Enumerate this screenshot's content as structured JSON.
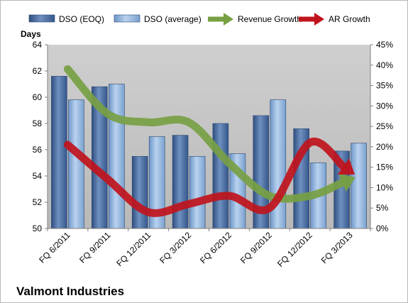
{
  "chart_data": {
    "type": "bar",
    "title": "Valmont Industries",
    "ylabel": "Days",
    "categories": [
      "FQ 6/2011",
      "FQ 9/2011",
      "FQ 12/2011",
      "FQ 3/2012",
      "FQ 6/2012",
      "FQ 9/2012",
      "FQ 12/2012",
      "FQ 3/2013"
    ],
    "ylim": [
      50,
      64
    ],
    "yticks": [
      "50",
      "52",
      "54",
      "56",
      "58",
      "60",
      "62",
      "64"
    ],
    "y2lim": [
      0,
      45
    ],
    "y2ticks": [
      "0%",
      "5%",
      "10%",
      "15%",
      "20%",
      "25%",
      "30%",
      "35%",
      "40%",
      "45%"
    ],
    "series": [
      {
        "name": "DSO (EOQ)",
        "kind": "bar",
        "color": "#4a6fa5",
        "values": [
          61.6,
          60.8,
          55.5,
          57.1,
          58.0,
          58.6,
          57.6,
          55.9
        ]
      },
      {
        "name": "DSO (average)",
        "kind": "bar",
        "color": "#8db3e2",
        "values": [
          59.8,
          61.0,
          57.0,
          55.5,
          55.7,
          59.8,
          55.0,
          56.5
        ]
      },
      {
        "name": "Revenue Growth",
        "kind": "arrow-line",
        "axis": "right",
        "color": "#77a043",
        "values": [
          39,
          28,
          26,
          26,
          16,
          8,
          8,
          12
        ]
      },
      {
        "name": "AR Growth",
        "kind": "arrow-line",
        "axis": "right",
        "color": "#c0141c",
        "values": [
          20.5,
          12,
          4,
          6,
          8,
          5,
          21,
          14
        ]
      }
    ],
    "grid": false,
    "legend": "top",
    "plot_background": "#c0c0c0"
  }
}
